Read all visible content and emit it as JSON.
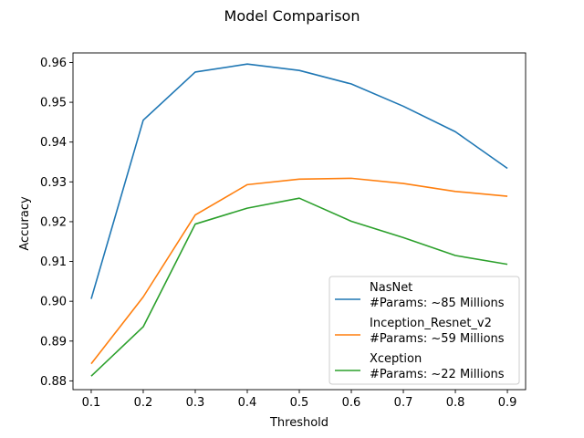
{
  "chart_data": {
    "type": "line",
    "title": "Model Comparison",
    "xlabel": "Threshold",
    "ylabel": "Accuracy",
    "x": [
      0.1,
      0.2,
      0.3,
      0.4,
      0.5,
      0.6,
      0.7,
      0.8,
      0.9
    ],
    "xlim": [
      0.065,
      0.935
    ],
    "ylim": [
      0.8778,
      0.9624
    ],
    "xticks": [
      "0.1",
      "0.2",
      "0.3",
      "0.4",
      "0.5",
      "0.6",
      "0.7",
      "0.8",
      "0.9"
    ],
    "yticks": [
      "0.88",
      "0.89",
      "0.90",
      "0.91",
      "0.92",
      "0.93",
      "0.94",
      "0.95",
      "0.96"
    ],
    "grid": false,
    "legend_position": "lower-right",
    "series": [
      {
        "name": "NasNet",
        "subtitle": "#Params: ~85 Millions",
        "color": "#1f77b4",
        "values": [
          0.9006,
          0.9455,
          0.9576,
          0.9596,
          0.958,
          0.9546,
          0.949,
          0.9426,
          0.9334
        ]
      },
      {
        "name": "Inception_Resnet_v2",
        "subtitle": "#Params: ~59 Millions",
        "color": "#ff7f0e",
        "values": [
          0.8843,
          0.9011,
          0.9217,
          0.9293,
          0.9307,
          0.9309,
          0.9296,
          0.9276,
          0.9264
        ]
      },
      {
        "name": "Xception",
        "subtitle": "#Params: ~22 Millions",
        "color": "#2ca02c",
        "values": [
          0.8812,
          0.8936,
          0.9194,
          0.9234,
          0.9259,
          0.9201,
          0.916,
          0.9115,
          0.9093
        ]
      }
    ]
  }
}
